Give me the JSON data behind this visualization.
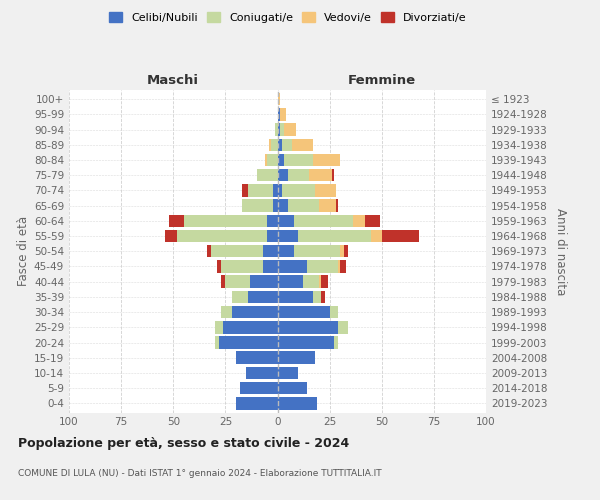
{
  "age_groups": [
    "0-4",
    "5-9",
    "10-14",
    "15-19",
    "20-24",
    "25-29",
    "30-34",
    "35-39",
    "40-44",
    "45-49",
    "50-54",
    "55-59",
    "60-64",
    "65-69",
    "70-74",
    "75-79",
    "80-84",
    "85-89",
    "90-94",
    "95-99",
    "100+"
  ],
  "birth_years": [
    "2019-2023",
    "2014-2018",
    "2009-2013",
    "2004-2008",
    "1999-2003",
    "1994-1998",
    "1989-1993",
    "1984-1988",
    "1979-1983",
    "1974-1978",
    "1969-1973",
    "1964-1968",
    "1959-1963",
    "1954-1958",
    "1949-1953",
    "1944-1948",
    "1939-1943",
    "1934-1938",
    "1929-1933",
    "1924-1928",
    "≤ 1923"
  ],
  "colors": {
    "celibi": "#4472c4",
    "coniugati": "#c5d9a0",
    "vedovi": "#f5c57a",
    "divorziati": "#c0322a"
  },
  "males": {
    "celibi": [
      20,
      18,
      15,
      20,
      28,
      26,
      22,
      14,
      13,
      7,
      7,
      5,
      5,
      2,
      2,
      0,
      0,
      0,
      0,
      0,
      0
    ],
    "coniugati": [
      0,
      0,
      0,
      0,
      2,
      4,
      5,
      8,
      12,
      20,
      25,
      43,
      40,
      15,
      12,
      10,
      5,
      3,
      1,
      0,
      0
    ],
    "vedovi": [
      0,
      0,
      0,
      0,
      0,
      0,
      0,
      0,
      0,
      0,
      0,
      0,
      0,
      0,
      0,
      0,
      1,
      1,
      0,
      0,
      0
    ],
    "divorziati": [
      0,
      0,
      0,
      0,
      0,
      0,
      0,
      0,
      2,
      2,
      2,
      6,
      7,
      0,
      3,
      0,
      0,
      0,
      0,
      0,
      0
    ]
  },
  "females": {
    "celibi": [
      19,
      14,
      10,
      18,
      27,
      29,
      25,
      17,
      12,
      14,
      8,
      10,
      8,
      5,
      2,
      5,
      3,
      2,
      1,
      1,
      0
    ],
    "coniugati": [
      0,
      0,
      0,
      0,
      2,
      5,
      4,
      4,
      8,
      15,
      22,
      35,
      28,
      15,
      16,
      10,
      14,
      5,
      2,
      0,
      0
    ],
    "vedovi": [
      0,
      0,
      0,
      0,
      0,
      0,
      0,
      0,
      1,
      1,
      2,
      5,
      6,
      8,
      10,
      11,
      13,
      10,
      6,
      3,
      1
    ],
    "divorziati": [
      0,
      0,
      0,
      0,
      0,
      0,
      0,
      2,
      3,
      3,
      2,
      18,
      7,
      1,
      0,
      1,
      0,
      0,
      0,
      0,
      0
    ]
  },
  "xlim": 100,
  "title": "Popolazione per età, sesso e stato civile - 2024",
  "subtitle": "COMUNE DI LULA (NU) - Dati ISTAT 1° gennaio 2024 - Elaborazione TUTTITALIA.IT",
  "xlabel_left": "Maschi",
  "xlabel_right": "Femmine",
  "ylabel_left": "Fasce di età",
  "ylabel_right": "Anni di nascita",
  "legend_labels": [
    "Celibi/Nubili",
    "Coniugati/e",
    "Vedovi/e",
    "Divorziati/e"
  ],
  "bg_color": "#f0f0f0",
  "plot_bg_color": "#ffffff",
  "grid_color": "#cccccc"
}
